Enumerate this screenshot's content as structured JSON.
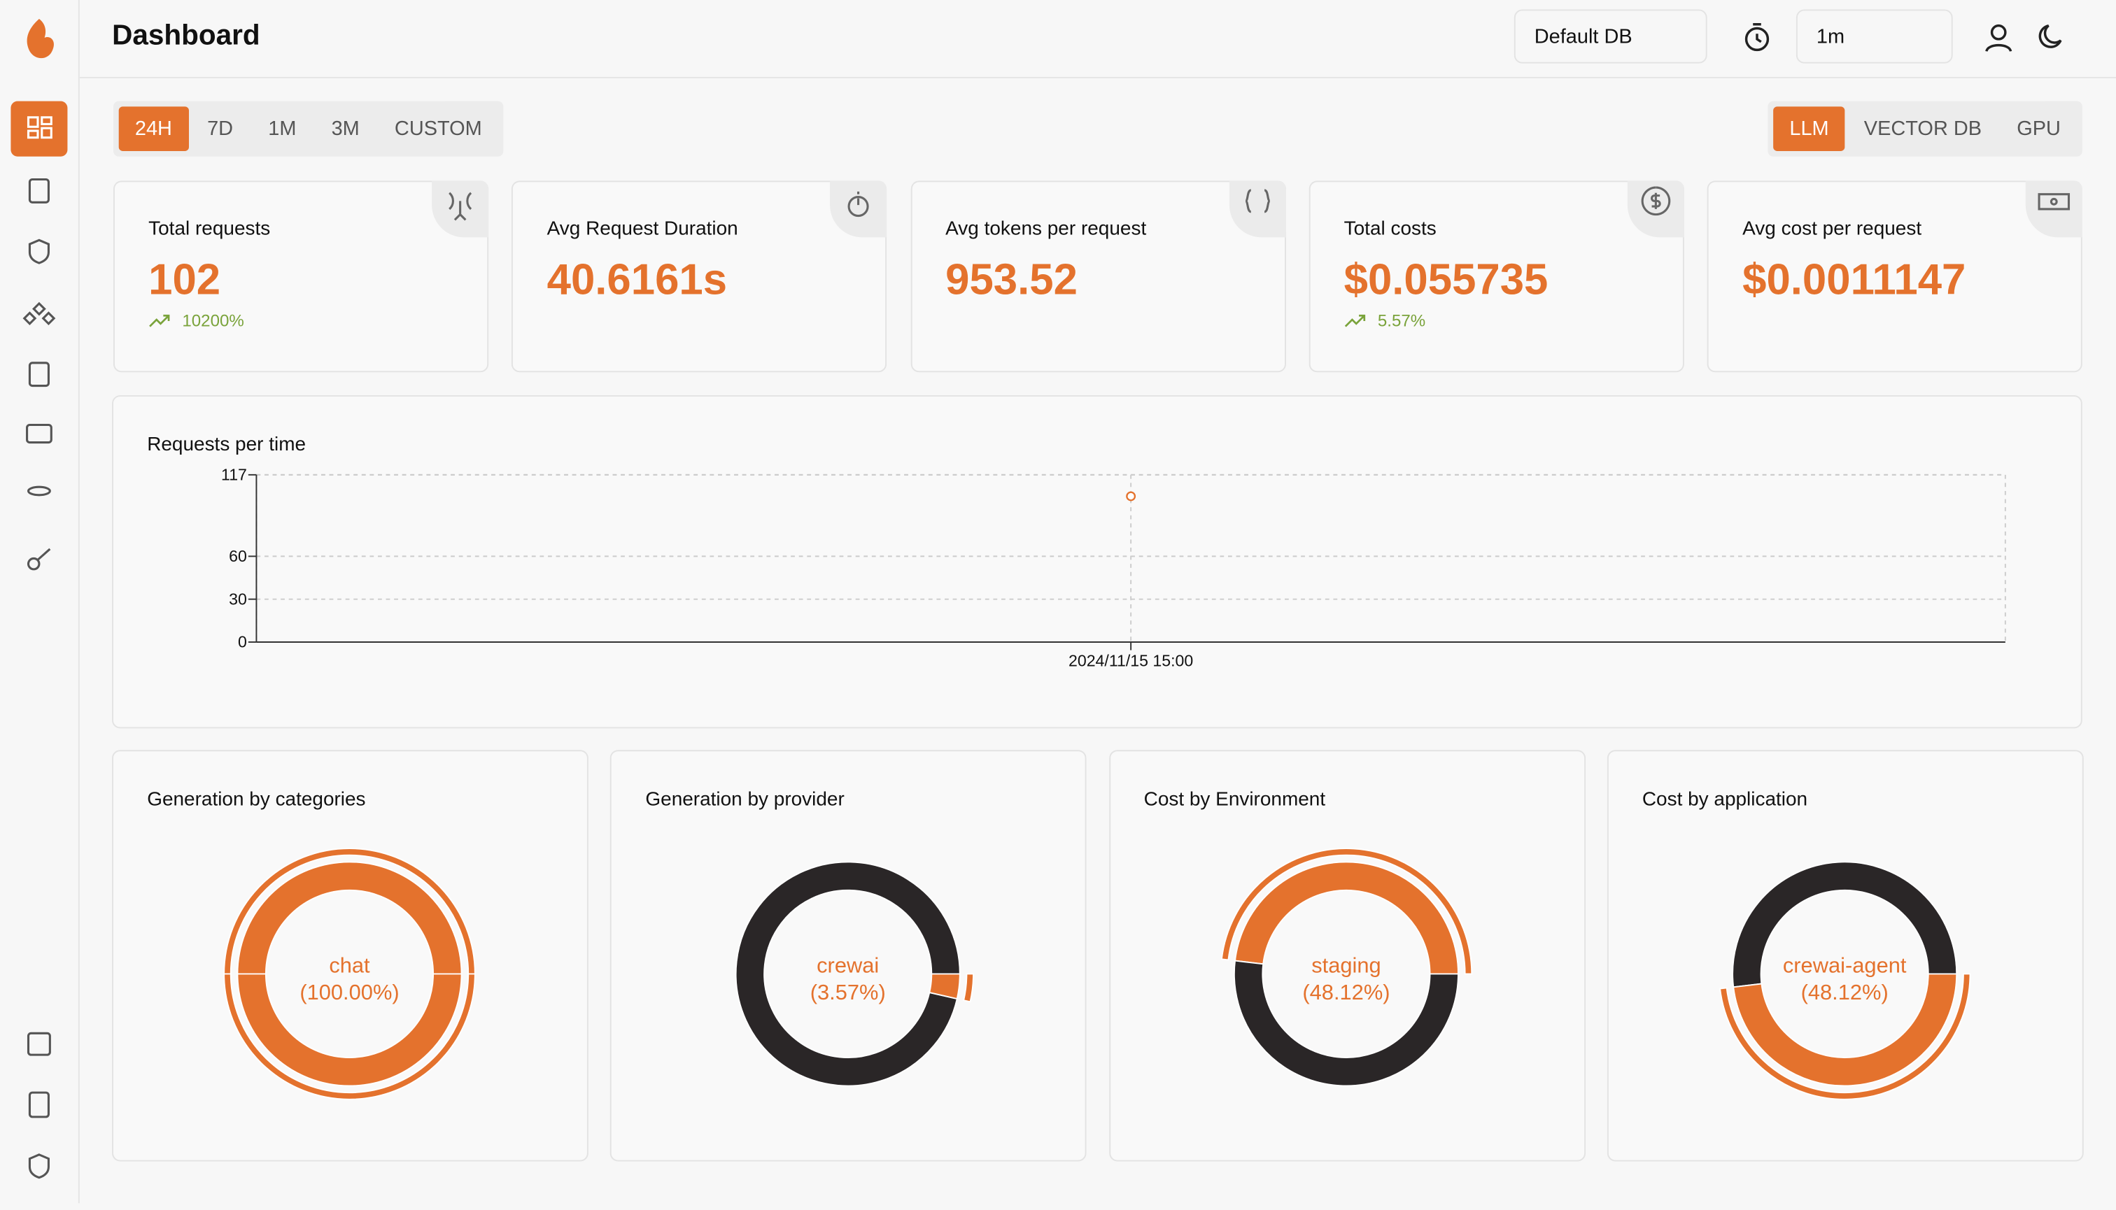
{
  "header": {
    "title": "Dashboard",
    "database": "Default DB",
    "refresh": "1m"
  },
  "time_filters": [
    "24H",
    "7D",
    "1M",
    "3M",
    "CUSTOM"
  ],
  "tabs": [
    "LLM",
    "VECTOR DB",
    "GPU"
  ],
  "cards": [
    {
      "title": "Total requests",
      "value": "102",
      "change": "10200%"
    },
    {
      "title": "Avg Request Duration",
      "value": "40.6161s"
    },
    {
      "title": "Avg tokens per request",
      "value": "953.52"
    },
    {
      "title": "Total costs",
      "value": "$0.055735",
      "change": "5.57%"
    },
    {
      "title": "Avg cost per request",
      "value": "$0.0011147"
    }
  ],
  "chart_data": [
    {
      "type": "line",
      "title": "Requests per time",
      "categories": [
        "2024/11/15 15:00"
      ],
      "series": [
        {
          "name": "Requests",
          "color": "#e4722d",
          "values": [
            102
          ]
        }
      ],
      "ylim": [
        0,
        117
      ],
      "yticks": [
        0,
        30,
        60,
        117
      ],
      "grid": true
    },
    {
      "type": "pie",
      "title": "Generation by categories",
      "categories": [
        "chat"
      ],
      "values": [
        100
      ],
      "value_labels": [
        "(100.00%)"
      ],
      "colors": [
        "#e4722d"
      ]
    },
    {
      "type": "pie",
      "title": "Generation by provider",
      "categories": [
        null,
        "crewai"
      ],
      "values": [
        96.43,
        3.57
      ],
      "value_labels": [
        null,
        "(3.57%)"
      ],
      "colors": [
        "#2a2627",
        "#e4722d"
      ]
    },
    {
      "type": "pie",
      "title": "Cost by Environment",
      "categories": [
        "staging",
        null
      ],
      "values": [
        48.12,
        51.88
      ],
      "value_labels": [
        "(48.12%)",
        null
      ],
      "colors": [
        "#e4722d",
        "#2a2627"
      ]
    },
    {
      "type": "pie",
      "title": "Cost by application",
      "categories": [
        null,
        "crewai-agent"
      ],
      "values": [
        51.88,
        48.12
      ],
      "value_labels": [
        null,
        "(48.12%)"
      ],
      "colors": [
        "#2a2627",
        "#e4722d"
      ]
    }
  ]
}
